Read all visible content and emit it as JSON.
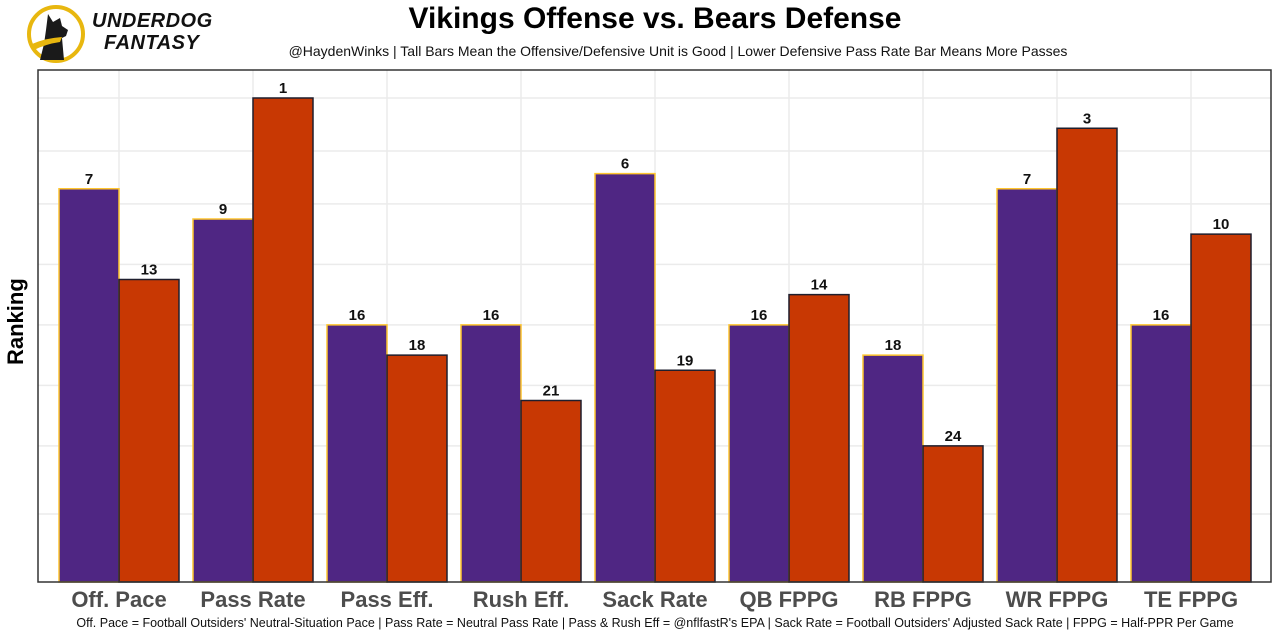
{
  "brand": {
    "line1": "UNDERDOG",
    "line2": "FANTASY",
    "logo_icon": "dog-silhouette-logo-icon",
    "logo_ring_color": "#e8b70f"
  },
  "caption": "Off. Pace = Football Outsiders' Neutral-Situation Pace | Pass Rate = Neutral Pass Rate | Pass & Rush Eff = @nflfastR's EPA | Sack Rate = Football Outsiders' Adjusted Sack Rate | FPPG = Half-PPR Per Game",
  "chart_data": {
    "type": "bar",
    "title": "Vikings Offense vs. Bears Defense",
    "subtitle": "@HaydenWinks | Tall Bars Mean the Offensive/Defensive Unit is Good | Lower Defensive Pass Rate Bar Means More Passes",
    "xlabel": "",
    "ylabel": "Ranking",
    "categories": [
      "Off. Pace",
      "Pass Rate",
      "Pass Eff.",
      "Rush Eff.",
      "Sack Rate",
      "QB FPPG",
      "RB FPPG",
      "WR FPPG",
      "TE FPPG"
    ],
    "series": [
      {
        "name": "Vikings Offense",
        "color": "#4f2683",
        "edge_color": "#ffc62f",
        "values": [
          7,
          9,
          16,
          16,
          6,
          16,
          18,
          7,
          16
        ]
      },
      {
        "name": "Bears Defense",
        "color": "#c83803",
        "edge_color": "#1f1f2e",
        "values": [
          13,
          1,
          18,
          21,
          19,
          14,
          24,
          3,
          10
        ]
      }
    ],
    "value_encoding": "bar height = 33 - rank (rank 1 tallest)",
    "rank_axis_bottom": 33,
    "gridline_ranks": [
      1,
      4.5,
      8,
      12,
      16,
      20,
      24,
      28.5
    ],
    "y_tick_labels_shown": false,
    "grid": true,
    "legend": "none"
  }
}
